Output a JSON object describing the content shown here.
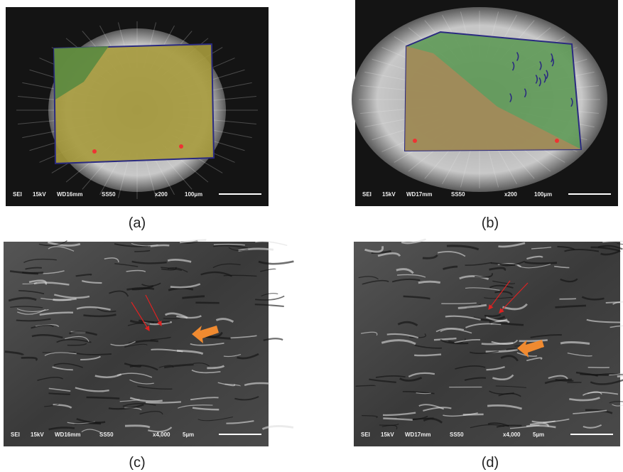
{
  "panels": [
    {
      "label": "(a)",
      "info": [
        "SEI",
        "15kV",
        "WD16mm",
        "SS50",
        "x200",
        "100µm"
      ]
    },
    {
      "label": "(b)",
      "info": [
        "SEI",
        "15kV",
        "WD17mm",
        "SS50",
        "x200",
        "100µm"
      ]
    },
    {
      "label": "(c)",
      "info": [
        "SEI",
        "15kV",
        "WD16mm",
        "SS50",
        "x4,000",
        "5µm"
      ]
    },
    {
      "label": "(d)",
      "info": [
        "SEI",
        "15kV",
        "WD17mm",
        "SS50",
        "x4,000",
        "5µm"
      ]
    }
  ]
}
